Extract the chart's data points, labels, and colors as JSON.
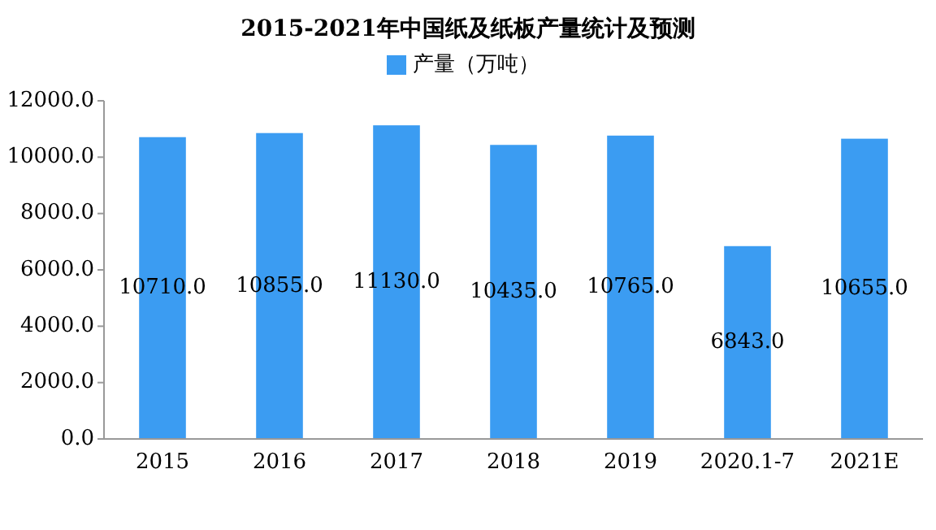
{
  "chart_data": {
    "type": "bar",
    "title": "2015-2021年中国纸及纸板产量统计及预测",
    "categories": [
      "2015",
      "2016",
      "2017",
      "2018",
      "2019",
      "2020.1-7",
      "2021E"
    ],
    "series": [
      {
        "name": "产量（万吨）",
        "color": "#3b9cf2",
        "values": [
          10710,
          10855,
          11130,
          10435,
          10765,
          6843,
          10655
        ]
      }
    ],
    "value_labels": [
      "10710.0",
      "10855.0",
      "11130.0",
      "10435.0",
      "10765.0",
      "6843.0",
      "10655.0"
    ],
    "ylim": [
      0,
      12000
    ],
    "yticks": [
      {
        "value": 0,
        "label": "0.0"
      },
      {
        "value": 2000,
        "label": "2000.0"
      },
      {
        "value": 4000,
        "label": "4000.0"
      },
      {
        "value": 6000,
        "label": "6000.0"
      },
      {
        "value": 8000,
        "label": "8000.0"
      },
      {
        "value": 10000,
        "label": "10000.0"
      },
      {
        "value": 12000,
        "label": "12000.0"
      }
    ],
    "legend": "top",
    "grid": false
  }
}
